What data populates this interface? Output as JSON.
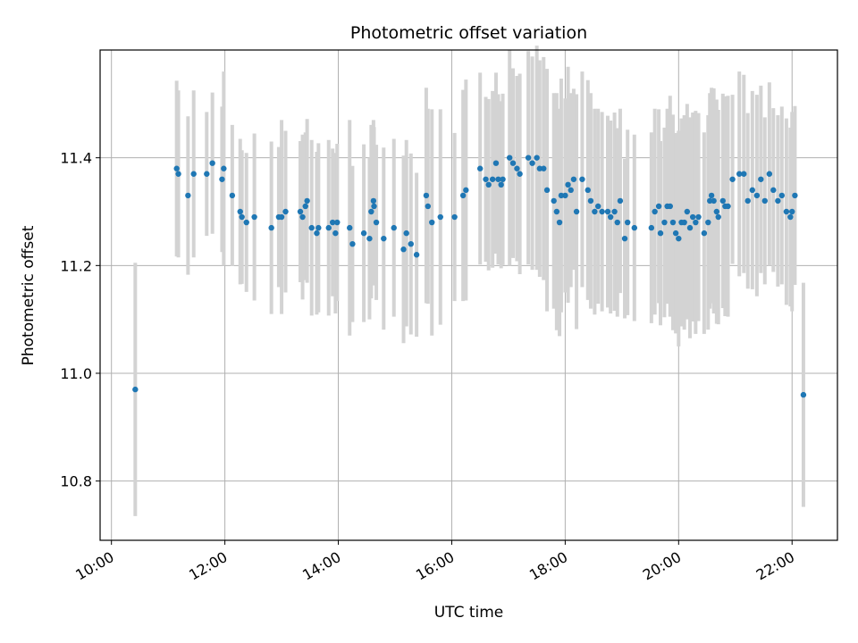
{
  "chart_data": {
    "type": "scatter",
    "title": "Photometric offset variation",
    "xlabel": "UTC time",
    "ylabel": "Photometric offset",
    "x_unit": "hours UTC",
    "xlim": [
      9.8,
      22.8
    ],
    "ylim": [
      10.69,
      11.6
    ],
    "xticks": [
      10,
      12,
      14,
      16,
      18,
      20,
      22
    ],
    "xtick_labels": [
      "10:00",
      "12:00",
      "14:00",
      "16:00",
      "18:00",
      "20:00",
      "22:00"
    ],
    "yticks": [
      10.8,
      11.0,
      11.2,
      11.4
    ],
    "ytick_labels": [
      "10.8",
      "11.0",
      "11.2",
      "11.4"
    ],
    "grid": true,
    "point_color": "#1f77b4",
    "errorbar_color": "#d3d3d3",
    "series": [
      {
        "x": [
          10.42,
          11.15,
          11.18,
          11.35,
          11.45,
          11.68,
          11.78,
          11.95,
          11.98,
          12.13,
          12.27,
          12.3,
          12.38,
          12.52,
          12.82,
          12.95,
          13.0,
          13.07,
          13.33,
          13.37,
          13.42,
          13.45,
          13.53,
          13.62,
          13.65,
          13.83,
          13.9,
          13.95,
          13.98,
          14.2,
          14.25,
          14.45,
          14.55,
          14.58,
          14.62,
          14.63,
          14.67,
          14.8,
          14.98,
          15.15,
          15.2,
          15.28,
          15.38,
          15.55,
          15.58,
          15.65,
          15.8,
          16.05,
          16.2,
          16.25,
          16.5,
          16.6,
          16.65,
          16.72,
          16.78,
          16.82,
          16.87,
          16.9,
          17.02,
          17.08,
          17.15,
          17.2,
          17.35,
          17.42,
          17.5,
          17.55,
          17.62,
          17.68,
          17.8,
          17.85,
          17.9,
          17.93,
          18.0,
          18.05,
          18.1,
          18.15,
          18.2,
          18.3,
          18.4,
          18.45,
          18.52,
          18.58,
          18.65,
          18.75,
          18.8,
          18.87,
          18.92,
          18.97,
          19.05,
          19.1,
          19.22,
          19.52,
          19.58,
          19.65,
          19.68,
          19.75,
          19.8,
          19.85,
          19.9,
          19.95,
          20.0,
          20.05,
          20.1,
          20.15,
          20.2,
          20.25,
          20.3,
          20.35,
          20.45,
          20.52,
          20.55,
          20.58,
          20.62,
          20.67,
          20.7,
          20.78,
          20.82,
          20.87,
          20.95,
          21.07,
          21.15,
          21.22,
          21.3,
          21.38,
          21.45,
          21.52,
          21.6,
          21.67,
          21.75,
          21.82,
          21.9,
          21.97,
          22.0,
          22.05,
          22.2
        ],
        "y": [
          10.97,
          11.38,
          11.37,
          11.33,
          11.37,
          11.37,
          11.39,
          11.36,
          11.38,
          11.33,
          11.3,
          11.29,
          11.28,
          11.29,
          11.27,
          11.29,
          11.29,
          11.3,
          11.3,
          11.29,
          11.31,
          11.32,
          11.27,
          11.26,
          11.27,
          11.27,
          11.28,
          11.26,
          11.28,
          11.27,
          11.24,
          11.26,
          11.25,
          11.3,
          11.32,
          11.31,
          11.28,
          11.25,
          11.27,
          11.23,
          11.26,
          11.24,
          11.22,
          11.33,
          11.31,
          11.28,
          11.29,
          11.29,
          11.33,
          11.34,
          11.38,
          11.36,
          11.35,
          11.36,
          11.39,
          11.36,
          11.35,
          11.36,
          11.4,
          11.39,
          11.38,
          11.37,
          11.4,
          11.39,
          11.4,
          11.38,
          11.38,
          11.34,
          11.32,
          11.3,
          11.28,
          11.33,
          11.33,
          11.35,
          11.34,
          11.36,
          11.3,
          11.36,
          11.34,
          11.32,
          11.3,
          11.31,
          11.3,
          11.3,
          11.29,
          11.3,
          11.28,
          11.32,
          11.25,
          11.28,
          11.27,
          11.27,
          11.3,
          11.31,
          11.26,
          11.28,
          11.31,
          11.31,
          11.28,
          11.26,
          11.25,
          11.28,
          11.28,
          11.3,
          11.27,
          11.29,
          11.28,
          11.29,
          11.26,
          11.28,
          11.32,
          11.33,
          11.32,
          11.3,
          11.29,
          11.32,
          11.31,
          11.31,
          11.36,
          11.37,
          11.37,
          11.32,
          11.34,
          11.33,
          11.36,
          11.32,
          11.37,
          11.34,
          11.32,
          11.33,
          11.3,
          11.29,
          11.3,
          11.33,
          10.96
        ],
        "yerr": [
          0.235,
          0.163,
          0.155,
          0.147,
          0.155,
          0.115,
          0.131,
          0.135,
          0.18,
          0.131,
          0.135,
          0.124,
          0.129,
          0.155,
          0.16,
          0.13,
          0.18,
          0.15,
          0.131,
          0.153,
          0.137,
          0.152,
          0.163,
          0.151,
          0.157,
          0.163,
          0.137,
          0.149,
          0.146,
          0.2,
          0.145,
          0.165,
          0.15,
          0.161,
          0.15,
          0.147,
          0.144,
          0.169,
          0.165,
          0.174,
          0.173,
          0.168,
          0.152,
          0.2,
          0.181,
          0.21,
          0.2,
          0.156,
          0.196,
          0.205,
          0.178,
          0.153,
          0.159,
          0.164,
          0.168,
          0.158,
          0.155,
          0.159,
          0.2,
          0.176,
          0.172,
          0.186,
          0.198,
          0.198,
          0.208,
          0.201,
          0.207,
          0.225,
          0.2,
          0.22,
          0.211,
          0.217,
          0.18,
          0.219,
          0.18,
          0.168,
          0.218,
          0.2,
          0.204,
          0.2,
          0.191,
          0.181,
          0.185,
          0.178,
          0.179,
          0.184,
          0.175,
          0.171,
          0.148,
          0.172,
          0.173,
          0.177,
          0.191,
          0.18,
          0.171,
          0.176,
          0.181,
          0.205,
          0.2,
          0.186,
          0.2,
          0.193,
          0.199,
          0.2,
          0.205,
          0.194,
          0.207,
          0.193,
          0.187,
          0.199,
          0.2,
          0.2,
          0.209,
          0.208,
          0.199,
          0.199,
          0.204,
          0.205,
          0.157,
          0.19,
          0.184,
          0.163,
          0.184,
          0.187,
          0.174,
          0.155,
          0.17,
          0.152,
          0.159,
          0.165,
          0.173,
          0.166,
          0.185,
          0.166,
          0.208
        ]
      }
    ]
  }
}
